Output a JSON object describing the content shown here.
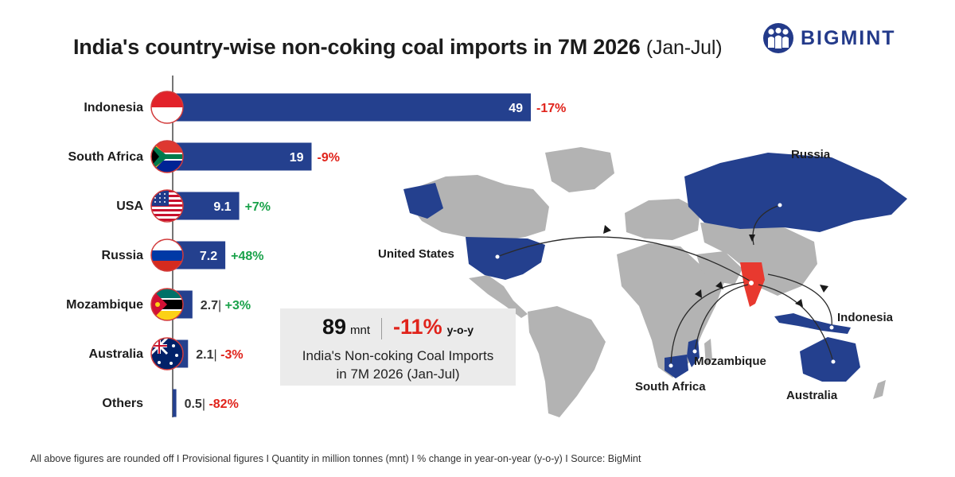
{
  "title": {
    "main": "India's country-wise non-coking coal imports in 7M 2026",
    "period": "(Jan-Jul)"
  },
  "brand": {
    "name": "BIGMINT",
    "logo_icon": "three-people-logo-icon",
    "color": "#233a8a"
  },
  "colors": {
    "bar": "#24408e",
    "negative": "#e0231b",
    "positive": "#1aa24a",
    "import_countries": "#24408e",
    "india": "#e8392f",
    "land": "#b3b3b3"
  },
  "chart_data": {
    "type": "bar",
    "orientation": "horizontal",
    "unit": "mnt",
    "categories": [
      "Indonesia",
      "South Africa",
      "USA",
      "Russia",
      "Mozambique",
      "Australia",
      "Others"
    ],
    "values": [
      49,
      19,
      9.1,
      7.2,
      2.7,
      2.1,
      0.5
    ],
    "value_labels": [
      "49",
      "19",
      "9.1",
      "7.2",
      "2.7",
      "2.1",
      "0.5"
    ],
    "change_yoy": [
      "-17%",
      "-9%",
      "+7%",
      "+48%",
      "+3%",
      "-3%",
      "-82%"
    ],
    "flags": [
      "indonesia-flag-icon",
      "south-africa-flag-icon",
      "usa-flag-icon",
      "russia-flag-icon",
      "mozambique-flag-icon",
      "australia-flag-icon",
      ""
    ]
  },
  "summary": {
    "total_value": "89",
    "total_unit": "mnt",
    "change": "-11%",
    "change_label": "y-o-y",
    "line2": "India's Non-coking Coal Imports",
    "line3": "in 7M 2026 (Jan-Jul)"
  },
  "map": {
    "labels": {
      "usa": "United States",
      "russia": "Russia",
      "indonesia": "Indonesia",
      "mozambique": "Mozambique",
      "south_africa": "South Africa",
      "australia": "Australia"
    }
  },
  "footnote": "All above figures are rounded off I Provisional figures I Quantity in million tonnes (mnt) I % change in year-on-year (y-o-y)  I  Source: BigMint"
}
